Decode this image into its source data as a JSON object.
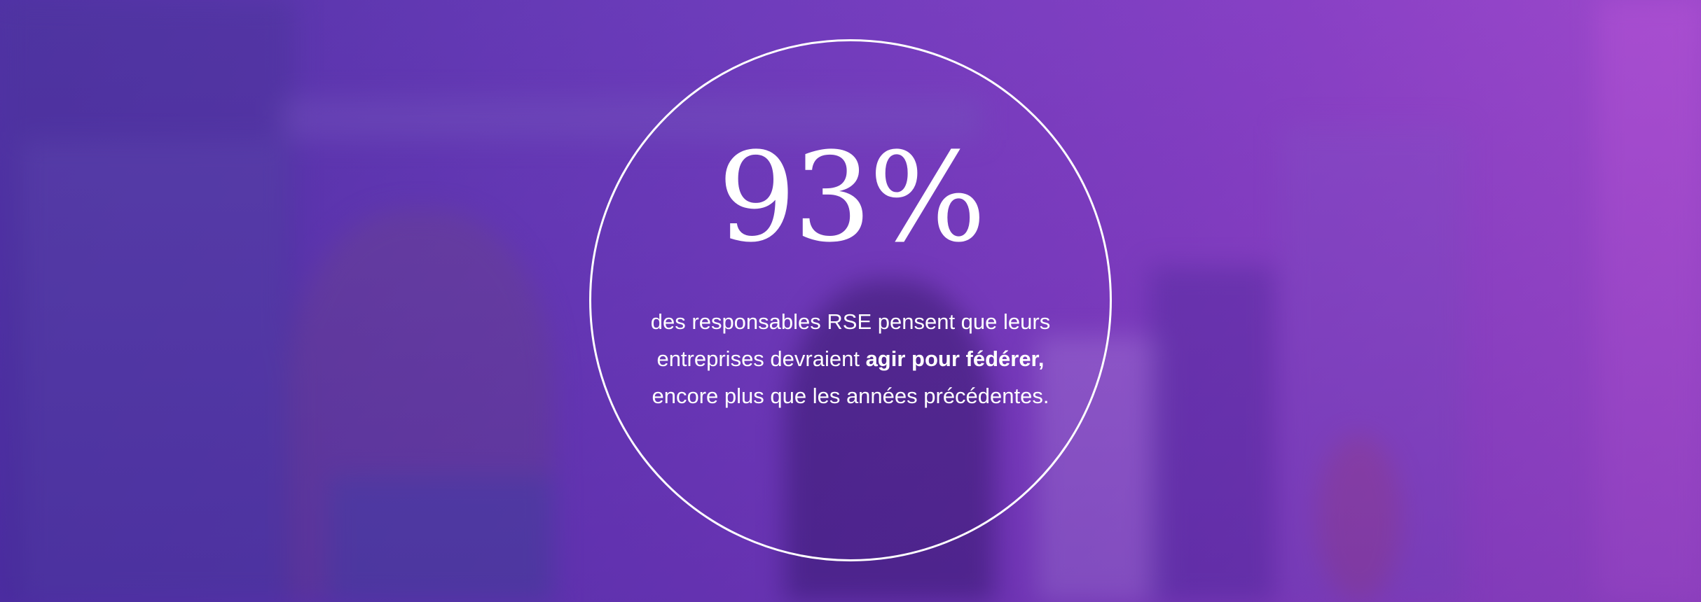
{
  "stat": "93%",
  "paragraph": {
    "before": "des responsables RSE pensent que leurs entreprises devraient ",
    "bold": "agir pour fédérer,",
    "after": " encore plus que les années précédentes."
  }
}
